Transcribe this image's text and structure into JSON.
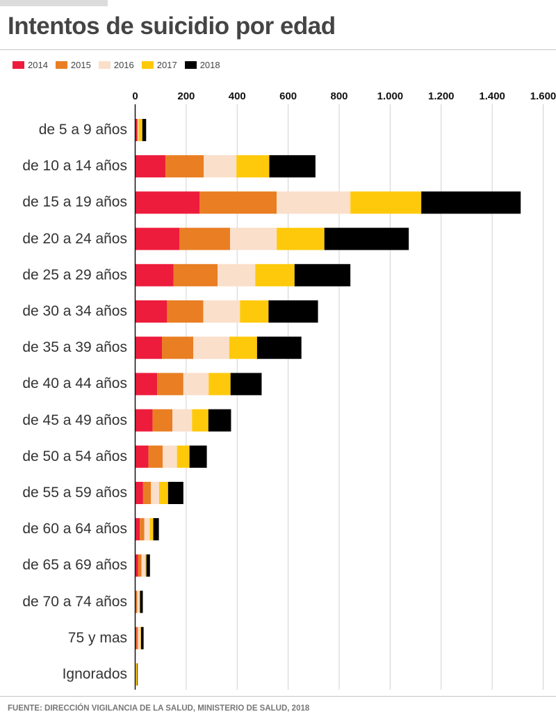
{
  "header": {
    "title": "Intentos de suicidio por edad"
  },
  "footer": {
    "source": "FUENTE: DIRECCIÓN VIGILANCIA DE LA SALUD, MINISTERIO DE SALUD, 2018"
  },
  "colors": {
    "2014": "#ED1C3C",
    "2015": "#E97E23",
    "2016": "#FADFCA",
    "2017": "#FFC90B",
    "2018": "#000000",
    "grid": "#d0d0d0"
  },
  "chart_data": {
    "type": "bar",
    "orientation": "horizontal",
    "stacked": true,
    "title": "Intentos de suicidio por edad",
    "xlabel": "",
    "ylabel": "",
    "xlim": [
      0,
      1600
    ],
    "grid": true,
    "legend_position": "top-left",
    "x_ticks": [
      0,
      200,
      400,
      600,
      800,
      1000,
      1200,
      1400,
      1600
    ],
    "x_tick_labels": [
      "0",
      "200",
      "400",
      "600",
      "800",
      "1.000",
      "1.200",
      "1.400",
      "1.600"
    ],
    "categories": [
      "de 5 a 9 años",
      "de 10 a 14 años",
      "de 15 a 19 años",
      "de 20 a 24 años",
      "de 25 a 29 años",
      "de 30 a 34 años",
      "de 35 a 39 años",
      "de 40 a 44 años",
      "de 45 a 49 años",
      "de 50 a 54 años",
      "de 55 a 59 años",
      "de 60 a 64 años",
      "de 65 a 69 años",
      "de 70 a 74 años",
      "75 y mas",
      "Ignorados"
    ],
    "series": [
      {
        "name": "2014",
        "values": [
          8,
          119,
          253,
          174,
          150,
          125,
          105,
          86,
          68,
          52,
          31,
          18,
          11,
          3,
          5,
          1
        ]
      },
      {
        "name": "2015",
        "values": [
          2,
          150,
          302,
          198,
          173,
          142,
          123,
          103,
          78,
          56,
          31,
          18,
          14,
          5,
          6,
          1
        ]
      },
      {
        "name": "2016",
        "values": [
          3,
          128,
          289,
          183,
          148,
          144,
          141,
          99,
          77,
          56,
          32,
          21,
          14,
          9,
          9,
          1
        ]
      },
      {
        "name": "2017",
        "values": [
          15,
          129,
          278,
          187,
          154,
          112,
          109,
          86,
          64,
          49,
          35,
          14,
          5,
          2,
          3,
          5
        ]
      },
      {
        "name": "2018",
        "values": [
          15,
          181,
          390,
          331,
          219,
          194,
          174,
          122,
          89,
          68,
          60,
          22,
          14,
          11,
          10,
          2
        ]
      }
    ]
  }
}
